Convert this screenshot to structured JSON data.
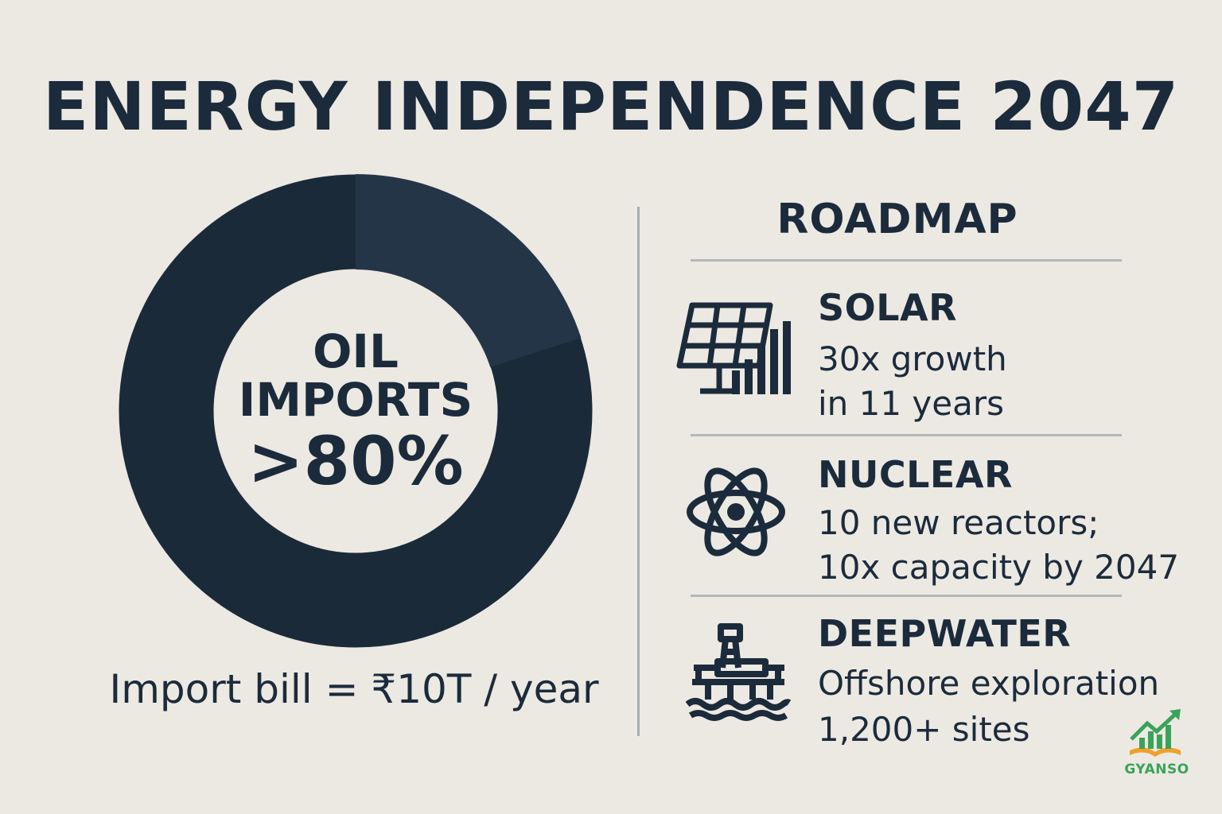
{
  "title": "ENERGY INDEPENDENCE 2047",
  "donut": {
    "line1": "OIL",
    "line2": "IMPORTS",
    "line3": ">80%",
    "share_percent": 80,
    "colors": {
      "major": "#1b2a39",
      "minor": "#243548"
    }
  },
  "import_bill": "Import bill = ₹10T / year",
  "roadmap": {
    "title": "ROADMAP",
    "items": [
      {
        "heading": "SOLAR",
        "lines": [
          "30x growth",
          "in 11 years"
        ],
        "icon": "solar-panel-icon"
      },
      {
        "heading": "NUCLEAR",
        "lines": [
          "10 new reactors;",
          "10x capacity by 2047"
        ],
        "icon": "atom-icon"
      },
      {
        "heading": "DEEPWATER",
        "lines": [
          "Offshore exploration",
          "1,200+ sites"
        ],
        "icon": "oil-rig-icon"
      }
    ]
  },
  "logo": {
    "text": "GYANSO",
    "color": "#3aa35a",
    "accent": "#f0a02a"
  }
}
